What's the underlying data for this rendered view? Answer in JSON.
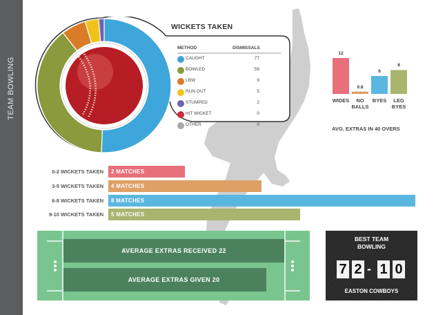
{
  "sidebar": {
    "title": "TEAM BOWLING"
  },
  "colors": {
    "caught": "#3ea6da",
    "bowled": "#8a9a3c",
    "lbw": "#d97b27",
    "run_out": "#f1c21a",
    "stumped": "#6c63b8",
    "hit_wicket": "#d1283c",
    "other": "#a8a8a8",
    "bar_red": "#e8707a",
    "bar_orange": "#dfa065",
    "bar_blue": "#5ab8e0",
    "bar_green": "#a9b56f",
    "pitch": "#79c58f",
    "score_bg": "#2a2a2a"
  },
  "wickets_taken": {
    "title": "WICKETS TAKEN",
    "col_method": "METHOD",
    "col_dismissals": "DISMISSALS",
    "rows": [
      {
        "label": "CAUGHT",
        "value": "77",
        "color": "#3ea6da"
      },
      {
        "label": "BOWLED",
        "value": "59",
        "color": "#8a9a3c"
      },
      {
        "label": "LBW",
        "value": "9",
        "color": "#d97b27"
      },
      {
        "label": "RUN OUT",
        "value": "5",
        "color": "#f1c21a"
      },
      {
        "label": "STUMPED",
        "value": "2",
        "color": "#6c63b8"
      },
      {
        "label": "HIT WICKET",
        "value": "0",
        "color": "#d1283c"
      },
      {
        "label": "OTHER",
        "value": "0",
        "color": "#a8a8a8"
      }
    ]
  },
  "chart_data": [
    {
      "type": "pie",
      "title": "WICKETS TAKEN",
      "categories": [
        "CAUGHT",
        "BOWLED",
        "LBW",
        "RUN OUT",
        "STUMPED",
        "HIT WICKET",
        "OTHER"
      ],
      "values": [
        77,
        59,
        9,
        5,
        2,
        0,
        0
      ]
    },
    {
      "type": "bar",
      "orientation": "horizontal",
      "categories": [
        "0-2 WICKETS TAKEN",
        "3-5 WICKETS TAKEN",
        "6-8 WICKETS TAKEN",
        "9-10 WICKETS TAKEN"
      ],
      "values": [
        2,
        4,
        8,
        5
      ],
      "value_labels": [
        "2 MATCHES",
        "4 MATCHES",
        "8 MATCHES",
        "5 MATCHES"
      ],
      "colors": [
        "#e8707a",
        "#dfa065",
        "#5ab8e0",
        "#a9b56f"
      ]
    },
    {
      "type": "bar",
      "categories": [
        "WIDES",
        "NO BALLS",
        "BYES",
        "LEG BYES"
      ],
      "values": [
        12,
        0.8,
        6,
        8
      ],
      "value_labels": [
        "12",
        "0.8",
        "6",
        "8"
      ],
      "colors": [
        "#e8707a",
        "#dfa065",
        "#5ab8e0",
        "#a9b56f"
      ],
      "xlabel": "AVG. EXTRAS IN 40 OVERS"
    }
  ],
  "extras_chart": {
    "caption": "AVG. EXTRAS IN 40 OVERS",
    "cat_lines": [
      [
        "WIDES"
      ],
      [
        "NO",
        "BALLS"
      ],
      [
        "BYES"
      ],
      [
        "LEG",
        "BYES"
      ]
    ]
  },
  "pitch": {
    "received": "AVERAGE EXTRAS RECEIVED 22",
    "given": "AVERAGE EXTRAS GIVEN 20"
  },
  "best_team": {
    "title_line1": "BEST TEAM",
    "title_line2": "BOWLING",
    "digits": [
      "7",
      "2",
      "1",
      "0"
    ],
    "team": "EASTON COWBOYS"
  }
}
